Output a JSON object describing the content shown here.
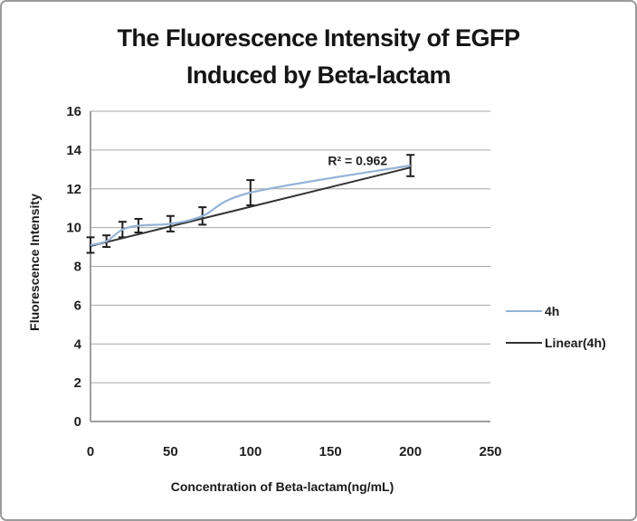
{
  "frame": {
    "background": "#ffffff",
    "border_color": "#9b9b9b"
  },
  "chart_data": {
    "type": "line",
    "title_lines": [
      "The Fluorescence Intensity of EGFP",
      "Induced by Beta-lactam"
    ],
    "xlabel": "Concentration of Beta-lactam(ng/mL)",
    "ylabel": "Fluorescence Intensity",
    "xlim": [
      0,
      250
    ],
    "ylim": [
      0,
      16
    ],
    "x_ticks": [
      0,
      50,
      100,
      150,
      200,
      250
    ],
    "y_ticks": [
      0,
      2,
      4,
      6,
      8,
      10,
      12,
      14,
      16
    ],
    "grid": "horizontal",
    "legend_position": "right",
    "colors": {
      "grid": "#a6a6a6",
      "axis": "#808080",
      "error_bar": "#1f1f1f",
      "series": "#95B3D7",
      "trendline": "#333333"
    },
    "series": [
      {
        "name": "4h",
        "color": "#95B3D7",
        "smooth": true,
        "x": [
          0,
          10,
          20,
          30,
          50,
          70,
          100,
          200
        ],
        "values": [
          9.1,
          9.3,
          9.9,
          10.1,
          10.2,
          10.6,
          11.8,
          13.2
        ],
        "error_bars": [
          0.4,
          0.3,
          0.4,
          0.35,
          0.4,
          0.45,
          0.65,
          0.55
        ]
      }
    ],
    "trendline": {
      "name": "Linear(4h)",
      "color": "#333333",
      "x": [
        0,
        200
      ],
      "values": [
        9.05,
        13.1
      ]
    },
    "annotation": {
      "text": "R² = 0.962",
      "x": 167,
      "y": 13.45
    },
    "legend": [
      {
        "label": "4h",
        "color": "#95B3D7"
      },
      {
        "label": "Linear(4h)",
        "color": "#333333"
      }
    ]
  }
}
